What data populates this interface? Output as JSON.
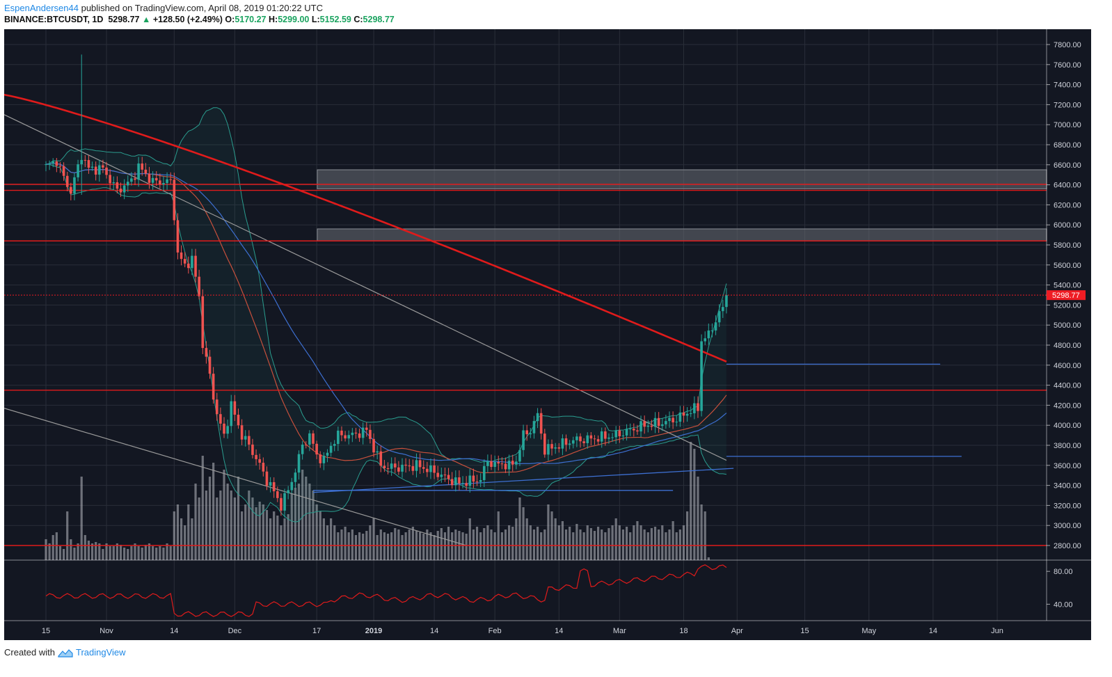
{
  "header": {
    "author": "EspenAndersen44",
    "published_text": " published on TradingView.com, April 08, 2019 01:20:22 UTC",
    "symbol": "BINANCE:BTCUSDT, 1D",
    "last": "5298.77",
    "change_arrow": "▲",
    "change": "+128.50 (+2.49%)",
    "o_label": "O:",
    "o_value": "5170.27",
    "h_label": "H:",
    "h_value": "5299.00",
    "l_label": "L:",
    "l_value": "5152.59",
    "c_label": "C:",
    "c_value": "5298.77"
  },
  "footer": {
    "created_with": "Created with",
    "brand": "TradingView"
  },
  "colors": {
    "background": "#131722",
    "grid": "#2a2e39",
    "up": "#26a69a",
    "down": "#ef5350",
    "ma200": "#e01b1b",
    "ma_blue": "#3d6fd1",
    "ma_orange": "#c8503c",
    "bollinger": "#2a9d8f",
    "level": "#e01b1b",
    "trendline": "#9a9a9a",
    "rsi": "#e01b1b",
    "price_label": "#ef1c24"
  },
  "chart_data": {
    "type": "candlestick",
    "title": "BINANCE:BTCUSDT, 1D",
    "y_ticks": [
      "7800.00",
      "7600.00",
      "7400.00",
      "7200.00",
      "7000.00",
      "6800.00",
      "6600.00",
      "6400.00",
      "6200.00",
      "6000.00",
      "5800.00",
      "5600.00",
      "5400.00",
      "5200.00",
      "5000.00",
      "4800.00",
      "4600.00",
      "4400.00",
      "4200.00",
      "4000.00",
      "3800.00",
      "3600.00",
      "3400.00",
      "3200.00",
      "3000.00",
      "2800.00"
    ],
    "ylim": [
      2740,
      7910
    ],
    "x_ticks": [
      "15",
      "Nov",
      "14",
      "Dec",
      "17",
      "2019",
      "14",
      "Feb",
      "14",
      "Mar",
      "18",
      "Apr",
      "15",
      "May",
      "14",
      "Jun"
    ],
    "x_tick_days": [
      0,
      17,
      36,
      53,
      76,
      92,
      109,
      126,
      144,
      161,
      179,
      194,
      213,
      231,
      249,
      267
    ],
    "last_price_label": "5298.77",
    "rsi_ticks": [
      "80.00",
      "40.00"
    ],
    "rsi_ylim": [
      20,
      92
    ],
    "ohlc_anchor_closes": [
      [
        0,
        6580
      ],
      [
        3,
        6640
      ],
      [
        5,
        6470
      ],
      [
        7,
        6330
      ],
      [
        10,
        6700
      ],
      [
        12,
        6560
      ],
      [
        16,
        6560
      ],
      [
        20,
        6340
      ],
      [
        24,
        6440
      ],
      [
        26,
        6580
      ],
      [
        30,
        6430
      ],
      [
        35,
        6430
      ],
      [
        36,
        6100
      ],
      [
        37,
        5700
      ],
      [
        39,
        5600
      ],
      [
        41,
        5650
      ],
      [
        43,
        5300
      ],
      [
        44,
        4800
      ],
      [
        46,
        4500
      ],
      [
        48,
        4100
      ],
      [
        50,
        3900
      ],
      [
        52,
        4200
      ],
      [
        53,
        4100
      ],
      [
        55,
        3900
      ],
      [
        57,
        3800
      ],
      [
        60,
        3600
      ],
      [
        62,
        3450
      ],
      [
        63,
        3400
      ],
      [
        66,
        3200
      ],
      [
        68,
        3350
      ],
      [
        70,
        3550
      ],
      [
        72,
        3800
      ],
      [
        74,
        3900
      ],
      [
        76,
        3700
      ],
      [
        78,
        3650
      ],
      [
        80,
        3800
      ],
      [
        82,
        3900
      ],
      [
        86,
        3900
      ],
      [
        90,
        3950
      ],
      [
        94,
        3600
      ],
      [
        96,
        3580
      ],
      [
        100,
        3580
      ],
      [
        104,
        3600
      ],
      [
        108,
        3550
      ],
      [
        112,
        3480
      ],
      [
        116,
        3420
      ],
      [
        120,
        3450
      ],
      [
        122,
        3460
      ],
      [
        124,
        3650
      ],
      [
        126,
        3600
      ],
      [
        128,
        3620
      ],
      [
        130,
        3590
      ],
      [
        132,
        3650
      ],
      [
        134,
        3900
      ],
      [
        136,
        3950
      ],
      [
        138,
        4100
      ],
      [
        140,
        3750
      ],
      [
        144,
        3800
      ],
      [
        148,
        3850
      ],
      [
        152,
        3860
      ],
      [
        156,
        3880
      ],
      [
        160,
        3900
      ],
      [
        164,
        3950
      ],
      [
        168,
        4000
      ],
      [
        172,
        4020
      ],
      [
        176,
        4050
      ],
      [
        179,
        4100
      ],
      [
        181,
        4150
      ],
      [
        183,
        4170
      ],
      [
        184,
        4850
      ],
      [
        186,
        4900
      ],
      [
        188,
        5050
      ],
      [
        190,
        5170
      ],
      [
        191,
        5298.77
      ]
    ],
    "volume_note": "relative daily volume bars (0-1 scale)",
    "volume": [
      0.15,
      0.12,
      0.18,
      0.2,
      0.1,
      0.08,
      0.35,
      0.15,
      0.09,
      0.12,
      0.6,
      0.18,
      0.14,
      0.12,
      0.13,
      0.12,
      0.08,
      0.12,
      0.1,
      0.1,
      0.12,
      0.11,
      0.09,
      0.08,
      0.1,
      0.12,
      0.1,
      0.09,
      0.11,
      0.12,
      0.1,
      0.09,
      0.1,
      0.09,
      0.12,
      0.1,
      0.35,
      0.4,
      0.3,
      0.25,
      0.4,
      0.3,
      0.55,
      0.45,
      0.75,
      0.5,
      0.6,
      0.7,
      0.45,
      0.5,
      0.65,
      0.55,
      0.5,
      0.45,
      0.6,
      0.35,
      0.4,
      0.5,
      0.45,
      0.38,
      0.42,
      0.4,
      0.36,
      0.3,
      0.35,
      0.32,
      0.25,
      0.3,
      0.33,
      0.48,
      0.52,
      0.55,
      0.65,
      0.6,
      0.55,
      0.5,
      0.4,
      0.35,
      0.3,
      0.25,
      0.3,
      0.25,
      0.2,
      0.22,
      0.24,
      0.2,
      0.22,
      0.18,
      0.2,
      0.19,
      0.21,
      0.25,
      0.3,
      0.18,
      0.22,
      0.2,
      0.19,
      0.2,
      0.23,
      0.22,
      0.18,
      0.2,
      0.22,
      0.24,
      0.21,
      0.2,
      0.19,
      0.22,
      0.2,
      0.18,
      0.21,
      0.23,
      0.2,
      0.24,
      0.2,
      0.22,
      0.21,
      0.2,
      0.19,
      0.3,
      0.22,
      0.24,
      0.2,
      0.23,
      0.25,
      0.22,
      0.2,
      0.35,
      0.2,
      0.22,
      0.25,
      0.24,
      0.3,
      0.45,
      0.38,
      0.3,
      0.25,
      0.22,
      0.24,
      0.2,
      0.22,
      0.4,
      0.35,
      0.3,
      0.25,
      0.28,
      0.22,
      0.24,
      0.2,
      0.26,
      0.22,
      0.2,
      0.25,
      0.23,
      0.21,
      0.24,
      0.22,
      0.2,
      0.23,
      0.25,
      0.3,
      0.25,
      0.22,
      0.24,
      0.2,
      0.25,
      0.28,
      0.25,
      0.22,
      0.2,
      0.23,
      0.24,
      0.22,
      0.25,
      0.2,
      0.22,
      0.28,
      0.2,
      0.22,
      0.25,
      0.35,
      0.85,
      0.8,
      0.6,
      0.4,
      0.35,
      0.02
    ],
    "horizontal_levels": [
      6345,
      6405,
      5840,
      4350,
      2800
    ],
    "gray_zones": [
      [
        6360,
        6550
      ],
      [
        5840,
        5960
      ]
    ],
    "blue_hlines": [
      [
        191,
        251,
        4610
      ],
      [
        191,
        257,
        3690
      ]
    ]
  }
}
